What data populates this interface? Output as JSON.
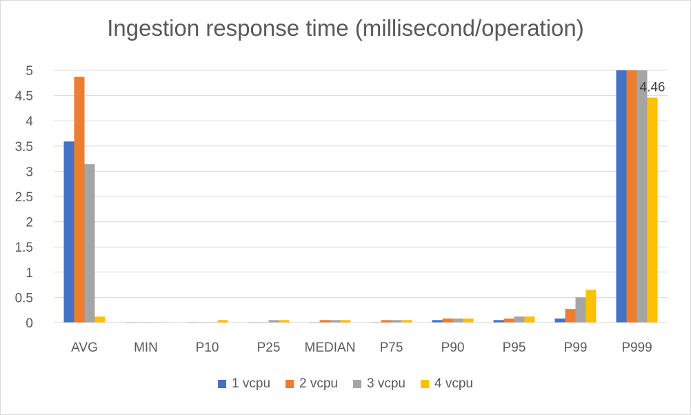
{
  "chart_data": {
    "type": "bar",
    "title": "Ingestion response time (millisecond/operation)",
    "xlabel": "",
    "ylabel": "",
    "ylim": [
      0,
      5
    ],
    "y_ticks": [
      "0",
      "0.5",
      "1",
      "1.5",
      "2",
      "2.5",
      "3",
      "3.5",
      "4",
      "4.5",
      "5"
    ],
    "grid": true,
    "legend_position": "bottom",
    "categories": [
      "AVG",
      "MIN",
      "P10",
      "P25",
      "MEDIAN",
      "P75",
      "P90",
      "P95",
      "P99",
      "P999"
    ],
    "series": [
      {
        "name": "1 vcpu",
        "color": "#4472c4",
        "values": [
          3.59,
          0.01,
          0.01,
          0.01,
          0.01,
          0.01,
          0.05,
          0.05,
          0.08,
          5.0
        ]
      },
      {
        "name": "2 vcpu",
        "color": "#ed7d31",
        "values": [
          4.87,
          0.01,
          0.01,
          0.01,
          0.05,
          0.05,
          0.08,
          0.08,
          0.27,
          5.0
        ]
      },
      {
        "name": "3 vcpu",
        "color": "#a5a5a5",
        "values": [
          3.14,
          0.01,
          0.01,
          0.05,
          0.05,
          0.05,
          0.08,
          0.12,
          0.5,
          5.0
        ]
      },
      {
        "name": "4 vcpu",
        "color": "#ffc000",
        "values": [
          0.12,
          0.01,
          0.05,
          0.05,
          0.05,
          0.05,
          0.08,
          0.12,
          0.65,
          4.46
        ]
      }
    ],
    "data_labels": [
      {
        "series": "4 vcpu",
        "category": "P999",
        "text": "4.46"
      }
    ]
  }
}
